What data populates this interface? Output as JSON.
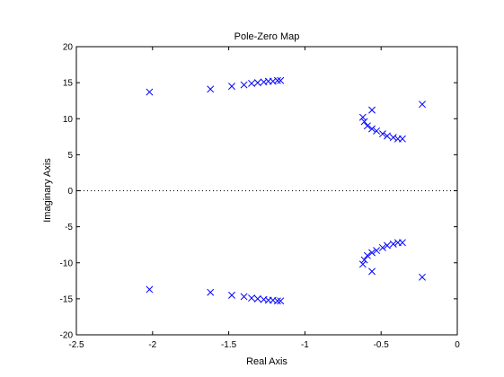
{
  "chart_data": {
    "type": "scatter",
    "title": "Pole-Zero Map",
    "xlabel": "Real Axis",
    "ylabel": "Imaginary Axis",
    "xlim": [
      -2.5,
      0
    ],
    "ylim": [
      -20,
      20
    ],
    "x_ticks": [
      -2.5,
      -2,
      -1.5,
      -1,
      -0.5,
      0
    ],
    "x_tick_labels": [
      "-2.5",
      "-2",
      "-1.5",
      "-1",
      "-0.5",
      "0"
    ],
    "y_ticks": [
      -20,
      -15,
      -10,
      -5,
      0,
      5,
      10,
      15,
      20
    ],
    "y_tick_labels": [
      "-20",
      "-15",
      "-10",
      "-5",
      "0",
      "5",
      "10",
      "15",
      "20"
    ],
    "grid": false,
    "zero_line": "dotted",
    "marker": "x",
    "marker_color": "#0000ff",
    "series": [
      {
        "points": [
          {
            "x": -2.02,
            "y": 13.7
          },
          {
            "x": -1.62,
            "y": 14.1
          },
          {
            "x": -1.48,
            "y": 14.5
          },
          {
            "x": -1.4,
            "y": 14.7
          },
          {
            "x": -1.35,
            "y": 14.9
          },
          {
            "x": -1.31,
            "y": 15.0
          },
          {
            "x": -1.27,
            "y": 15.1
          },
          {
            "x": -1.24,
            "y": 15.2
          },
          {
            "x": -1.21,
            "y": 15.2
          },
          {
            "x": -1.18,
            "y": 15.3
          },
          {
            "x": -1.16,
            "y": 15.3
          },
          {
            "x": -0.62,
            "y": 10.2
          },
          {
            "x": -0.61,
            "y": 9.6
          },
          {
            "x": -0.59,
            "y": 9.0
          },
          {
            "x": -0.56,
            "y": 11.2
          },
          {
            "x": -0.56,
            "y": 8.6
          },
          {
            "x": -0.53,
            "y": 8.3
          },
          {
            "x": -0.49,
            "y": 7.9
          },
          {
            "x": -0.46,
            "y": 7.6
          },
          {
            "x": -0.42,
            "y": 7.4
          },
          {
            "x": -0.39,
            "y": 7.2
          },
          {
            "x": -0.36,
            "y": 7.2
          },
          {
            "x": -0.23,
            "y": 12.0
          },
          {
            "x": -2.02,
            "y": -13.7
          },
          {
            "x": -1.62,
            "y": -14.1
          },
          {
            "x": -1.48,
            "y": -14.5
          },
          {
            "x": -1.4,
            "y": -14.7
          },
          {
            "x": -1.35,
            "y": -14.9
          },
          {
            "x": -1.31,
            "y": -15.0
          },
          {
            "x": -1.27,
            "y": -15.1
          },
          {
            "x": -1.24,
            "y": -15.2
          },
          {
            "x": -1.21,
            "y": -15.2
          },
          {
            "x": -1.18,
            "y": -15.3
          },
          {
            "x": -1.16,
            "y": -15.3
          },
          {
            "x": -0.62,
            "y": -10.2
          },
          {
            "x": -0.61,
            "y": -9.6
          },
          {
            "x": -0.59,
            "y": -9.0
          },
          {
            "x": -0.56,
            "y": -11.2
          },
          {
            "x": -0.56,
            "y": -8.6
          },
          {
            "x": -0.53,
            "y": -8.3
          },
          {
            "x": -0.49,
            "y": -7.9
          },
          {
            "x": -0.46,
            "y": -7.6
          },
          {
            "x": -0.42,
            "y": -7.4
          },
          {
            "x": -0.39,
            "y": -7.2
          },
          {
            "x": -0.36,
            "y": -7.2
          },
          {
            "x": -0.23,
            "y": -12.0
          }
        ]
      }
    ]
  }
}
